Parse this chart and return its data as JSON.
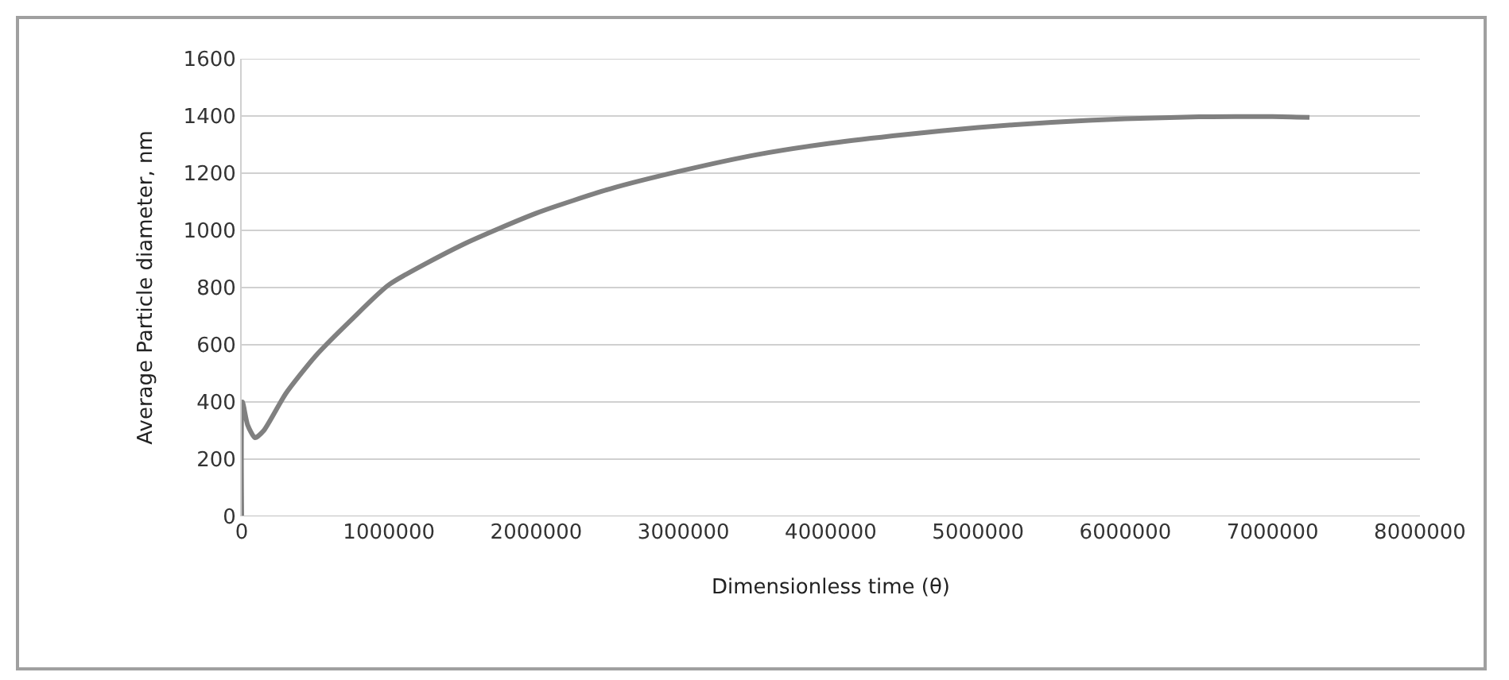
{
  "chart_data": {
    "type": "line",
    "xlabel": "Dimensionless time (θ)",
    "ylabel": "Average Particle diameter, nm",
    "series": [
      {
        "color": "#808080",
        "x": [
          0,
          5000,
          40000,
          90000,
          150000,
          300000,
          500000,
          750000,
          1000000,
          1500000,
          2000000,
          2500000,
          3000000,
          3500000,
          4000000,
          4500000,
          5000000,
          5500000,
          6000000,
          6500000,
          7000000,
          7250000
        ],
        "values": [
          0,
          400,
          320,
          275,
          300,
          430,
          560,
          690,
          810,
          950,
          1060,
          1145,
          1210,
          1265,
          1305,
          1335,
          1360,
          1378,
          1390,
          1397,
          1398,
          1395
        ]
      }
    ],
    "xlim": [
      0,
      8000000
    ],
    "xticks": [
      0,
      1000000,
      2000000,
      3000000,
      4000000,
      5000000,
      6000000,
      7000000,
      8000000
    ],
    "ylim": [
      0,
      1600
    ],
    "yticks": [
      0,
      200,
      400,
      600,
      800,
      1000,
      1200,
      1400,
      1600
    ],
    "grid": "y",
    "marker": "none",
    "line_style": "solid"
  }
}
